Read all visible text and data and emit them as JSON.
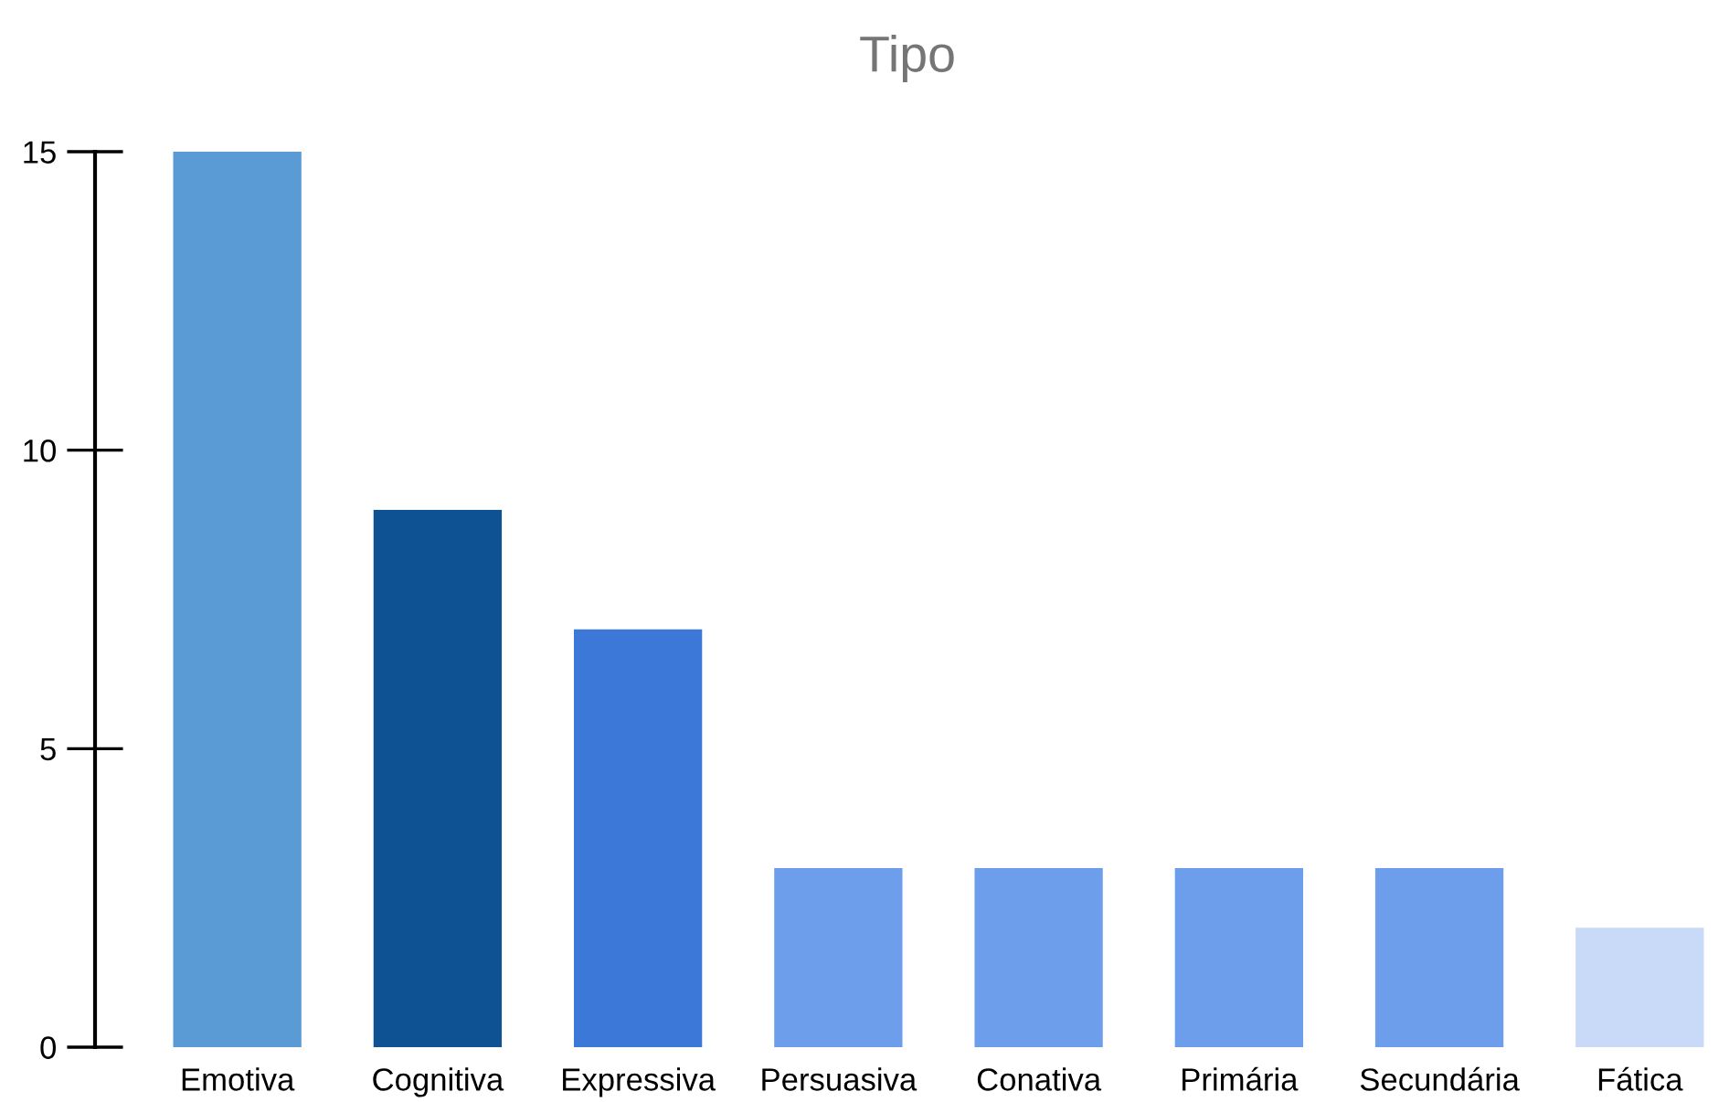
{
  "chart_data": {
    "type": "bar",
    "title": "Tipo",
    "categories": [
      "Emotiva",
      "Cognitiva",
      "Expressiva",
      "Persuasiva",
      "Conativa",
      "Primária",
      "Secundária",
      "Fática"
    ],
    "values": [
      15,
      9,
      7,
      3,
      3,
      3,
      3,
      2
    ],
    "colors": [
      "#5b9bd5",
      "#0f5294",
      "#3c78d8",
      "#6d9eeb",
      "#6d9eeb",
      "#6d9eeb",
      "#6d9eeb",
      "#c9daf8"
    ],
    "ylim": [
      0,
      15
    ],
    "yticks": [
      0,
      5,
      10,
      15
    ]
  }
}
